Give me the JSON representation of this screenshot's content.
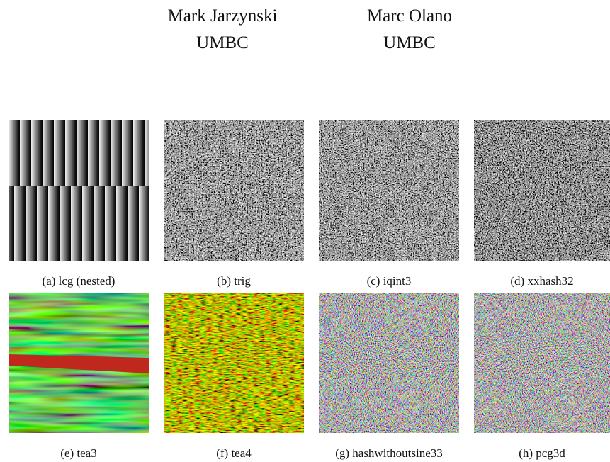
{
  "authors": [
    {
      "name": "Mark Jarzynski",
      "affiliation": "UMBC"
    },
    {
      "name": "Marc Olano",
      "affiliation": "UMBC"
    }
  ],
  "figures": [
    {
      "caption": "(a) lcg (nested)"
    },
    {
      "caption": "(b) trig"
    },
    {
      "caption": "(c) iqint3"
    },
    {
      "caption": "(d) xxhash32"
    },
    {
      "caption": "(e) tea3"
    },
    {
      "caption": "(f) tea4"
    },
    {
      "caption": "(g) hashwithoutsine33"
    },
    {
      "caption": "(h) pcg3d"
    }
  ]
}
